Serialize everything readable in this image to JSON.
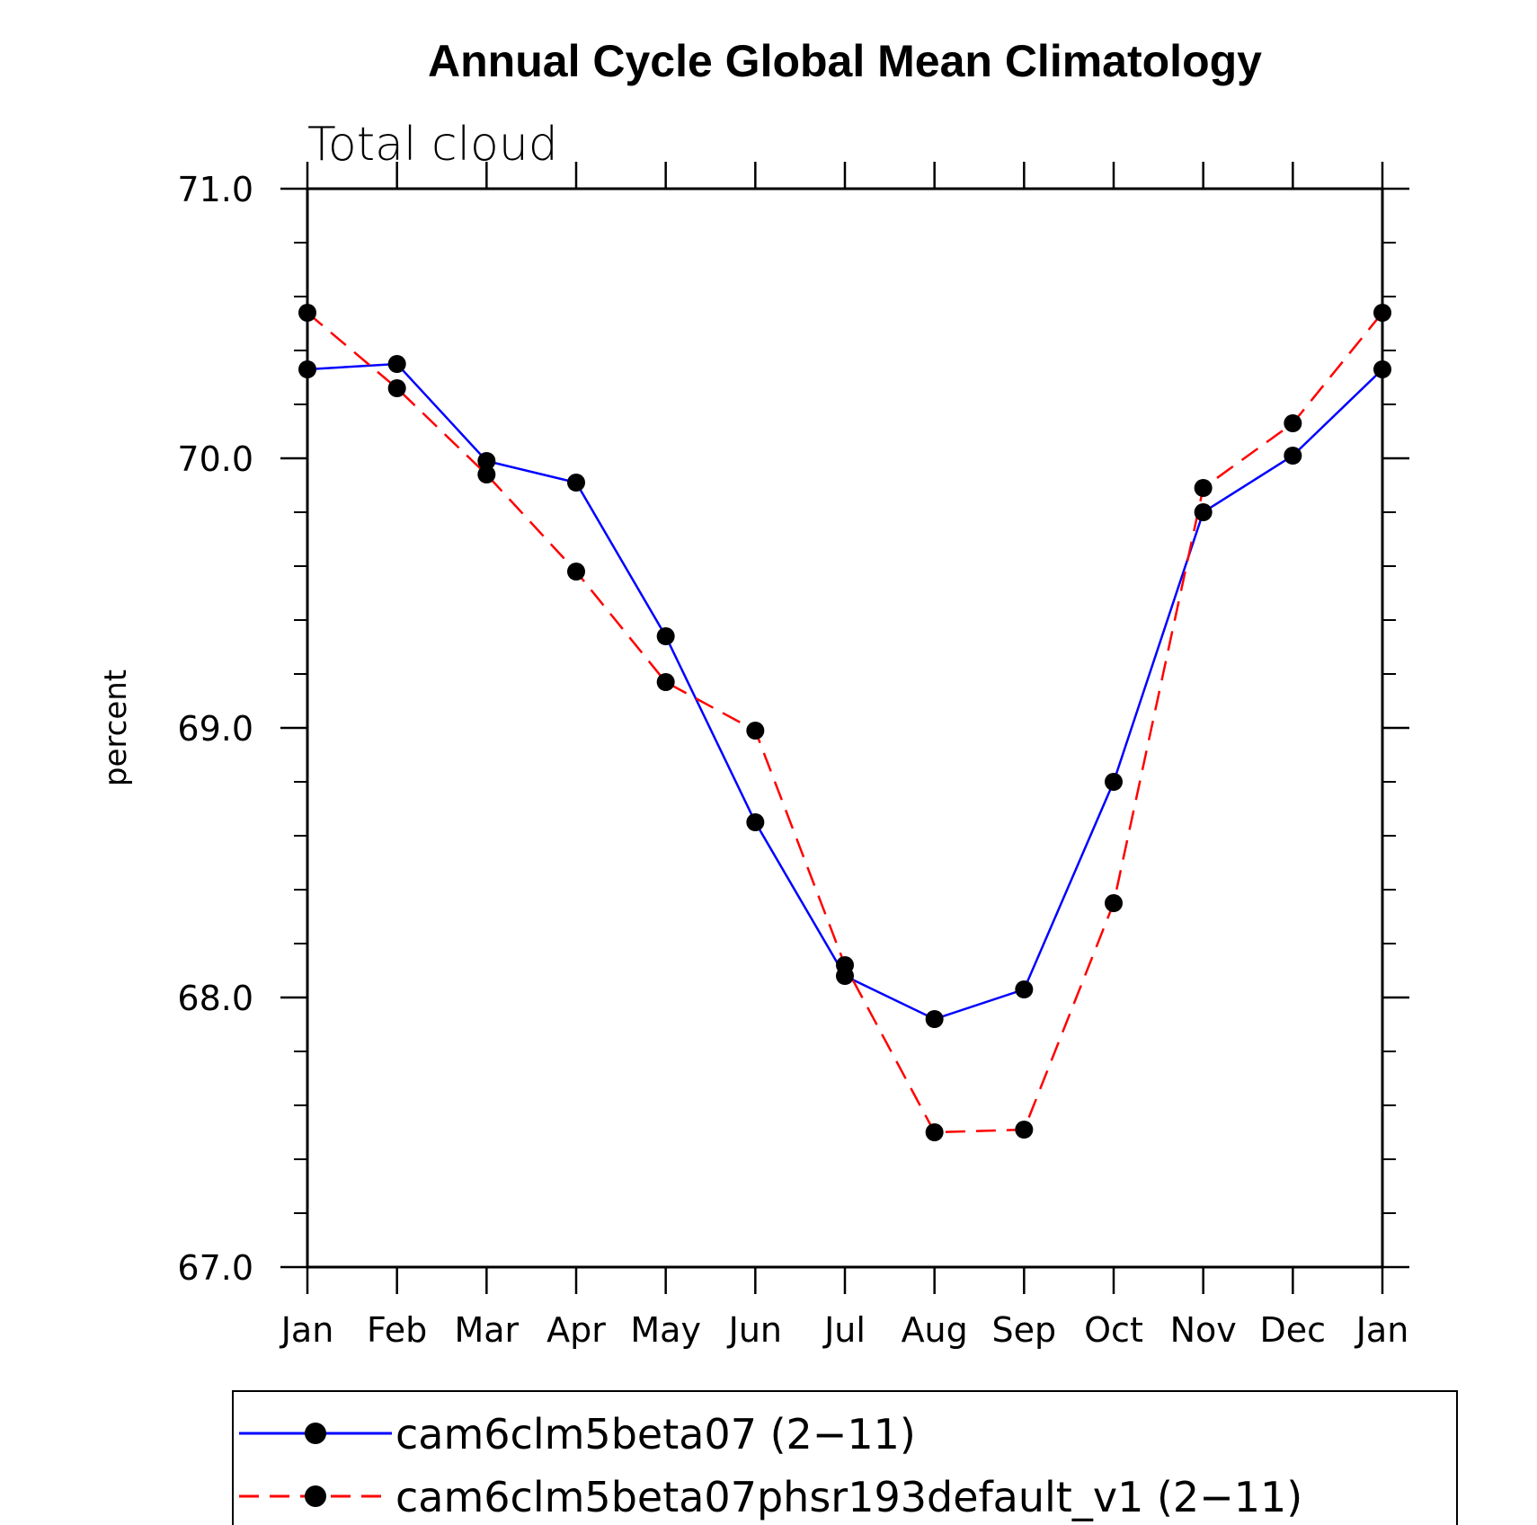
{
  "chart_data": {
    "type": "line",
    "title": "Annual Cycle Global Mean Climatology",
    "subtitle": "Total cloud",
    "ylabel": "percent",
    "xlabel": "",
    "categories": [
      "Jan",
      "Feb",
      "Mar",
      "Apr",
      "May",
      "Jun",
      "Jul",
      "Aug",
      "Sep",
      "Oct",
      "Nov",
      "Dec",
      "Jan"
    ],
    "ylim": [
      67.0,
      71.0
    ],
    "yticks": [
      "67.0",
      "68.0",
      "69.0",
      "70.0",
      "71.0"
    ],
    "grid": false,
    "legend_position": "bottom",
    "series": [
      {
        "name": "cam6clm5beta07 (2−11)",
        "color": "#0000ff",
        "dash": "solid",
        "values": [
          70.33,
          70.35,
          69.99,
          69.91,
          69.34,
          68.65,
          68.08,
          67.92,
          68.03,
          68.8,
          69.8,
          70.01,
          70.33
        ]
      },
      {
        "name": "cam6clm5beta07phsr193default_v1 (2−11)",
        "color": "#ff0000",
        "dash": "dashed",
        "values": [
          70.54,
          70.26,
          69.94,
          69.58,
          69.17,
          68.99,
          68.12,
          67.5,
          67.51,
          68.35,
          69.89,
          70.13,
          70.54
        ]
      }
    ]
  }
}
